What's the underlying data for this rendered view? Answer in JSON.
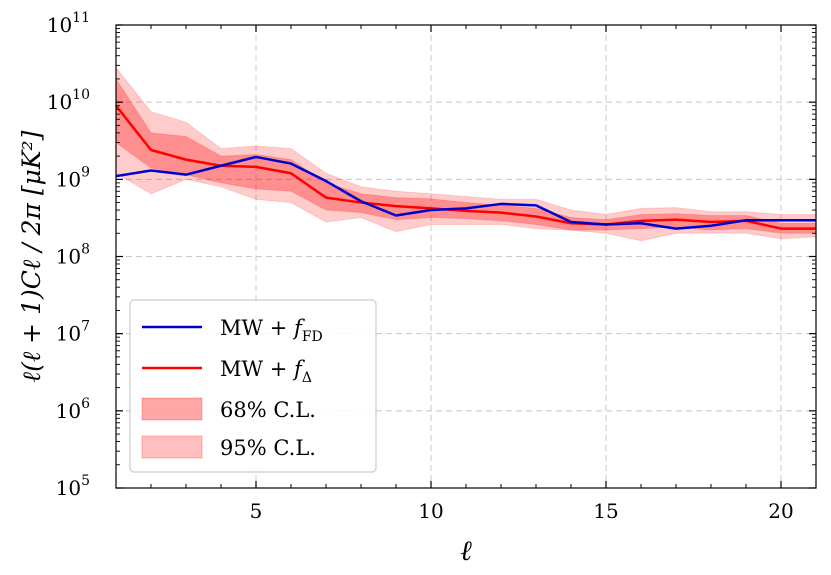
{
  "chart_data": {
    "type": "line",
    "xlabel": "ℓ",
    "ylabel": "ℓ(ℓ + 1)Cℓ / 2π [μK²]",
    "xlim": [
      1,
      21
    ],
    "ylim": [
      100000,
      100000000000
    ],
    "yscale": "log",
    "grid": true,
    "x_ticks": [
      5,
      10,
      15,
      20
    ],
    "y_ticks": [
      {
        "value": 100000,
        "base": "10",
        "exp": "5"
      },
      {
        "value": 1000000,
        "base": "10",
        "exp": "6"
      },
      {
        "value": 10000000,
        "base": "10",
        "exp": "7"
      },
      {
        "value": 100000000,
        "base": "10",
        "exp": "8"
      },
      {
        "value": 1000000000,
        "base": "10",
        "exp": "9"
      },
      {
        "value": 10000000000,
        "base": "10",
        "exp": "10"
      },
      {
        "value": 100000000000,
        "base": "10",
        "exp": "11"
      }
    ],
    "x": [
      1,
      2,
      3,
      4,
      5,
      6,
      7,
      8,
      9,
      10,
      11,
      12,
      13,
      14,
      15,
      16,
      17,
      18,
      19,
      20,
      21
    ],
    "series": [
      {
        "name": "MW + f_FD",
        "name_main": "MW + ",
        "name_var": "f",
        "name_sub": "FD",
        "color": "#0000cc",
        "values": [
          1100000000.0,
          1300000000.0,
          1150000000.0,
          1500000000.0,
          1950000000.0,
          1600000000.0,
          950000000.0,
          520000000.0,
          340000000.0,
          400000000.0,
          420000000.0,
          480000000.0,
          460000000.0,
          280000000.0,
          260000000.0,
          270000000.0,
          230000000.0,
          250000000.0,
          295000000.0,
          295000000.0,
          295000000.0
        ]
      },
      {
        "name": "MW + f_Δ",
        "name_main": "MW + ",
        "name_var": "f",
        "name_sub": "Δ",
        "color": "#ff0000",
        "values": [
          9000000000.0,
          2400000000.0,
          1800000000.0,
          1500000000.0,
          1450000000.0,
          1200000000.0,
          580000000.0,
          500000000.0,
          450000000.0,
          420000000.0,
          390000000.0,
          370000000.0,
          330000000.0,
          270000000.0,
          260000000.0,
          290000000.0,
          300000000.0,
          280000000.0,
          290000000.0,
          230000000.0,
          230000000.0
        ]
      }
    ],
    "bands": [
      {
        "name": "68% C.L.",
        "color": "#ff0000",
        "opacity": 0.3,
        "lower": [
          3000000000.0,
          1400000000.0,
          1150000000.0,
          900000000.0,
          750000000.0,
          700000000.0,
          400000000.0,
          370000000.0,
          300000000.0,
          320000000.0,
          310000000.0,
          290000000.0,
          260000000.0,
          220000000.0,
          220000000.0,
          230000000.0,
          240000000.0,
          220000000.0,
          230000000.0,
          200000000.0,
          200000000.0
        ],
        "upper": [
          20000000000.0,
          4000000000.0,
          3600000000.0,
          2000000000.0,
          2100000000.0,
          1800000000.0,
          900000000.0,
          650000000.0,
          580000000.0,
          560000000.0,
          500000000.0,
          460000000.0,
          420000000.0,
          320000000.0,
          300000000.0,
          350000000.0,
          360000000.0,
          340000000.0,
          340000000.0,
          270000000.0,
          270000000.0
        ]
      },
      {
        "name": "95% C.L.",
        "color": "#ff0000",
        "opacity": 0.2,
        "lower": [
          1200000000.0,
          650000000.0,
          1000000000.0,
          800000000.0,
          550000000.0,
          500000000.0,
          280000000.0,
          320000000.0,
          210000000.0,
          260000000.0,
          260000000.0,
          260000000.0,
          230000000.0,
          220000000.0,
          200000000.0,
          160000000.0,
          200000000.0,
          200000000.0,
          200000000.0,
          170000000.0,
          180000000.0
        ],
        "upper": [
          28000000000.0,
          7500000000.0,
          5500000000.0,
          2500000000.0,
          2700000000.0,
          2500000000.0,
          1200000000.0,
          800000000.0,
          700000000.0,
          650000000.0,
          600000000.0,
          550000000.0,
          550000000.0,
          400000000.0,
          350000000.0,
          420000000.0,
          430000000.0,
          380000000.0,
          380000000.0,
          350000000.0,
          350000000.0
        ]
      }
    ],
    "legend_position": "lower-left"
  }
}
